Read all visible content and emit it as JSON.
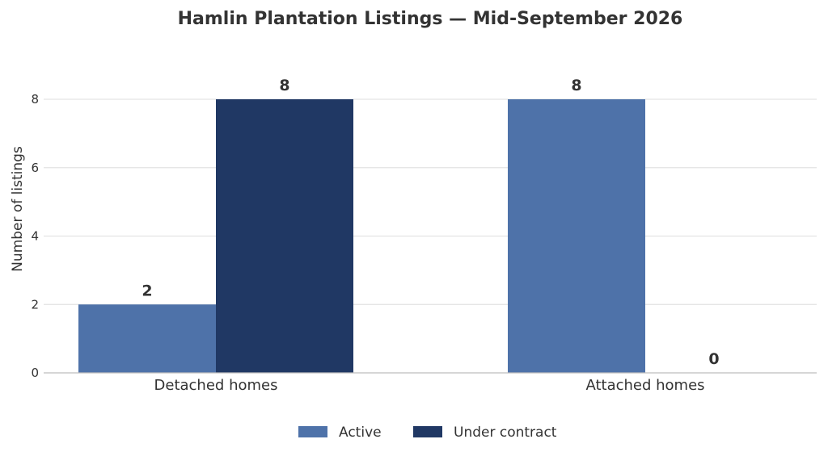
{
  "chart_data": {
    "type": "bar",
    "title": "Hamlin Plantation Listings — Mid-September 2026",
    "xlabel": "",
    "ylabel": "Number of listings",
    "categories": [
      "Detached homes",
      "Attached homes"
    ],
    "series": [
      {
        "name": "Active",
        "values": [
          2,
          8
        ],
        "color": "#4e72a9"
      },
      {
        "name": "Under contract",
        "values": [
          8,
          0
        ],
        "color": "#203864"
      }
    ],
    "ylim": [
      0,
      8
    ],
    "yticks": [
      0,
      2,
      4,
      6,
      8
    ],
    "grid": true,
    "legend_position": "bottom-center",
    "data_labels": true
  }
}
